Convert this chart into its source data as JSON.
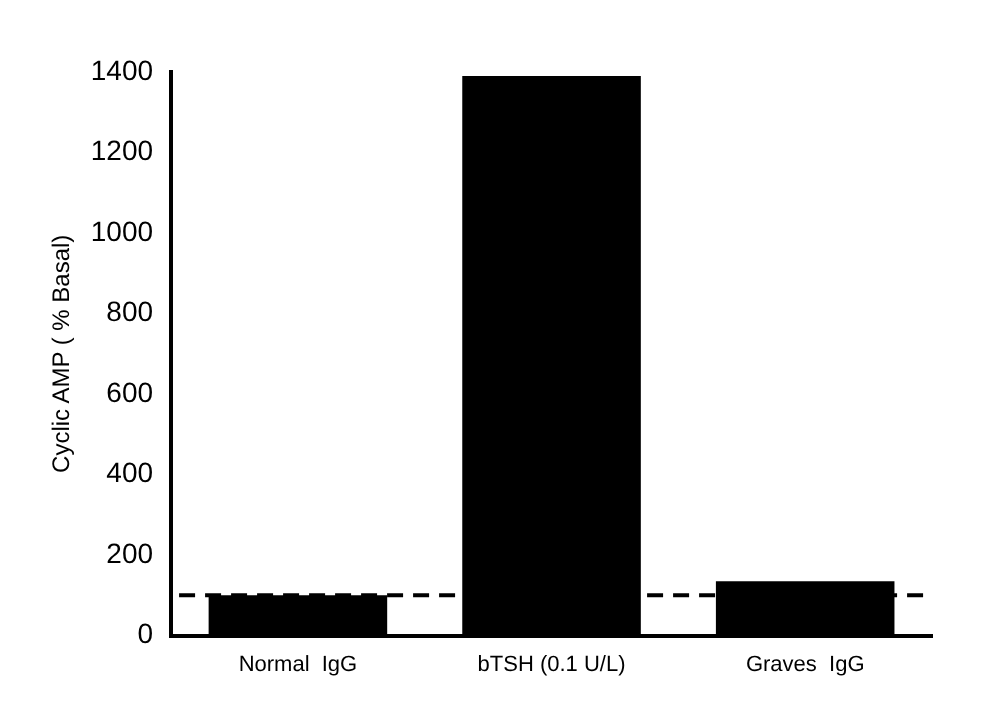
{
  "chart_data": {
    "type": "bar",
    "ylabel": "Cyclic AMP ( % Basal)",
    "categories": [
      "Normal  IgG",
      "bTSH (0.1 U/L)",
      "Graves  IgG"
    ],
    "values": [
      100,
      1390,
      135
    ],
    "color": "#000000",
    "ylim": [
      0,
      1400
    ],
    "yticks": [
      0,
      200,
      400,
      600,
      800,
      1000,
      1200,
      1400
    ],
    "grid": false,
    "legend": false,
    "ref_lines": [
      {
        "axis": "y",
        "value": 100,
        "line_style": "dashed",
        "color": "#000000"
      }
    ]
  }
}
